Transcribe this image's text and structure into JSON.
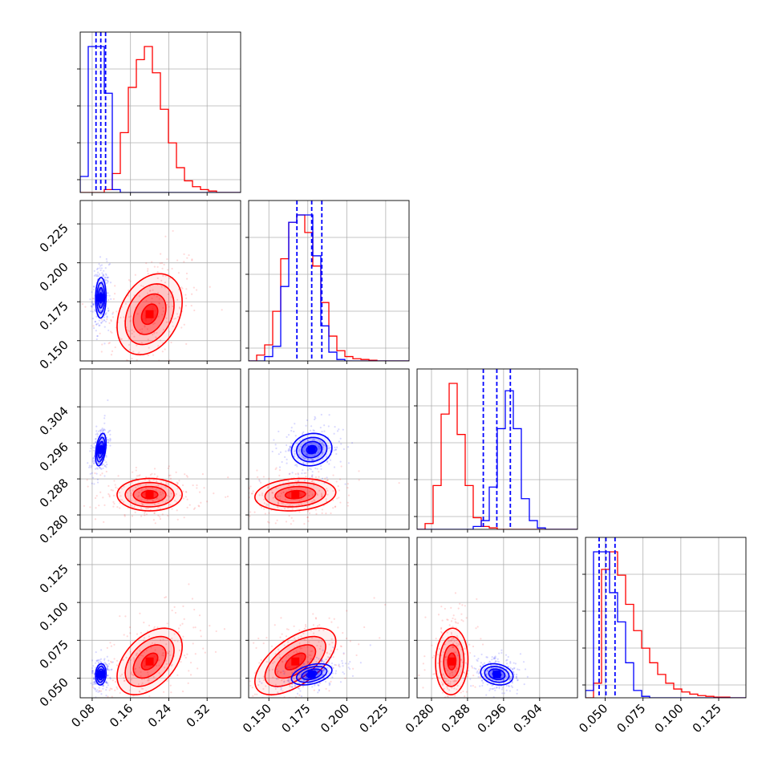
{
  "chart_data": {
    "type": "corner",
    "parameters": [
      {
        "range": [
          0.055,
          0.39
        ],
        "ticks": [
          "0.08",
          "0.16",
          "0.24",
          "0.32"
        ]
      },
      {
        "range": [
          0.137,
          0.24
        ],
        "ticks": [
          "0.150",
          "0.175",
          "0.200",
          "0.225"
        ]
      },
      {
        "range": [
          0.2768,
          0.3124
        ],
        "ticks": [
          "0.280",
          "0.288",
          "0.296",
          "0.304"
        ]
      },
      {
        "range": [
          0.037,
          0.143
        ],
        "ticks": [
          "0.050",
          "0.075",
          "0.100",
          "0.125"
        ]
      }
    ],
    "series": [
      {
        "color": "#ff0000",
        "means": [
          0.2,
          0.167,
          0.2845,
          0.061
        ],
        "sd": [
          0.034,
          0.013,
          0.0018,
          0.011
        ],
        "quantile_lines": false,
        "histograms": [
          {
            "edges_start": 0.055,
            "bin_width": 0.01675,
            "heights": [
              0,
              0,
              0,
              0.02,
              0.13,
              0.41,
              0.72,
              0.91,
              1.0,
              0.82,
              0.57,
              0.34,
              0.17,
              0.08,
              0.04,
              0.02,
              0.01,
              0,
              0,
              0
            ]
          },
          {
            "edges_start": 0.137,
            "bin_width": 0.00515,
            "heights": [
              0,
              0.04,
              0.11,
              0.34,
              0.7,
              0.95,
              1.0,
              0.88,
              0.65,
              0.4,
              0.17,
              0.07,
              0.03,
              0.015,
              0.01,
              0.005,
              0,
              0,
              0,
              0
            ]
          },
          {
            "edges_start": 0.2768,
            "bin_width": 0.00178,
            "heights": [
              0,
              0.04,
              0.3,
              0.79,
              1.0,
              0.65,
              0.3,
              0.08,
              0.02,
              0.01,
              0,
              0,
              0,
              0,
              0,
              0,
              0,
              0,
              0,
              0
            ]
          },
          {
            "edges_start": 0.037,
            "bin_width": 0.0053,
            "heights": [
              0,
              0.1,
              0.88,
              1.0,
              0.84,
              0.64,
              0.46,
              0.34,
              0.24,
              0.16,
              0.1,
              0.06,
              0.04,
              0.025,
              0.015,
              0.01,
              0.005,
              0.005,
              0,
              0
            ]
          }
        ]
      },
      {
        "color": "#0000ff",
        "means": [
          0.098,
          0.1775,
          0.2945,
          0.0525
        ],
        "sd": [
          0.0055,
          0.0065,
          0.0018,
          0.0035
        ],
        "quantile_lines": true,
        "quantiles": [
          [
            0.088,
            0.098,
            0.108
          ],
          [
            0.168,
            0.1775,
            0.184
          ],
          [
            0.2915,
            0.2945,
            0.2975
          ],
          [
            0.046,
            0.0505,
            0.0565
          ]
        ],
        "histograms": [
          {
            "edges_start": 0.055,
            "bin_width": 0.01675,
            "heights": [
              0.11,
              1.0,
              1.0,
              0.68,
              0.02,
              0,
              0,
              0,
              0,
              0,
              0,
              0,
              0,
              0,
              0,
              0,
              0,
              0,
              0,
              0
            ]
          },
          {
            "edges_start": 0.137,
            "bin_width": 0.00515,
            "heights": [
              0,
              0,
              0.03,
              0.1,
              0.51,
              0.95,
              1.0,
              1.0,
              0.72,
              0.24,
              0.06,
              0.01,
              0,
              0,
              0,
              0,
              0,
              0,
              0,
              0
            ]
          },
          {
            "edges_start": 0.2768,
            "bin_width": 0.00178,
            "heights": [
              0,
              0,
              0,
              0,
              0,
              0,
              0,
              0.02,
              0.06,
              0.29,
              0.69,
              0.95,
              0.69,
              0.21,
              0.06,
              0.01,
              0,
              0,
              0,
              0
            ]
          },
          {
            "edges_start": 0.037,
            "bin_width": 0.0053,
            "heights": [
              0.05,
              1.0,
              1.0,
              0.72,
              0.52,
              0.24,
              0.05,
              0.01,
              0,
              0,
              0,
              0,
              0,
              0,
              0,
              0,
              0,
              0,
              0,
              0
            ]
          }
        ]
      }
    ],
    "grid": true,
    "scatter_points_per_panel": 250,
    "contour_levels_sigma": [
      0.5,
      1.0,
      1.5,
      2.0
    ]
  }
}
